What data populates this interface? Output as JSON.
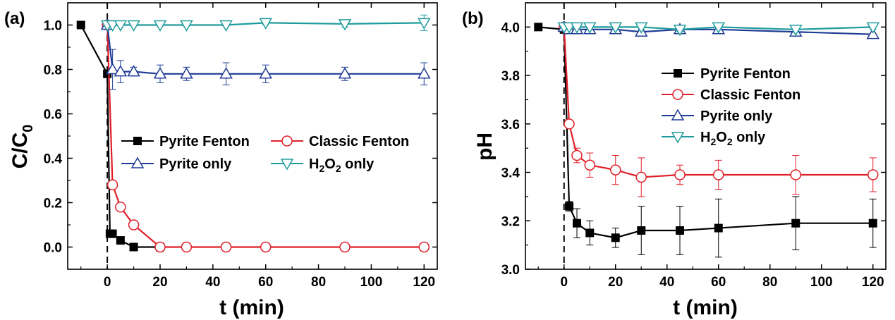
{
  "chart_data": [
    {
      "type": "line",
      "panel_label": "(a)",
      "xlabel": "t (min)",
      "ylabel": "C/C",
      "ylabel_sub": "0",
      "xlim": [
        -15,
        125
      ],
      "ylim": [
        -0.1,
        1.1
      ],
      "xticks": [
        0,
        20,
        40,
        60,
        80,
        100,
        120
      ],
      "yticks": [
        0.0,
        0.2,
        0.4,
        0.6,
        0.8,
        1.0
      ],
      "ytick_decimals": 1,
      "vline_x": 0,
      "legend_position": "center-right",
      "series": [
        {
          "name": "Pyrite Fenton",
          "color": "#000000",
          "marker": "square-filled",
          "x": [
            -10,
            0,
            1,
            2,
            5,
            10,
            20
          ],
          "y": [
            1.0,
            0.78,
            0.06,
            0.06,
            0.03,
            0.0,
            0.0
          ],
          "err": [
            0,
            0,
            0,
            0,
            0,
            0,
            0
          ]
        },
        {
          "name": "Classic Fenton",
          "color": "#e0202a",
          "marker": "circle-open",
          "x": [
            0,
            2,
            5,
            10,
            20,
            30,
            45,
            60,
            90,
            120
          ],
          "y": [
            1.0,
            0.28,
            0.18,
            0.1,
            0.0,
            0.0,
            0.0,
            0.0,
            0.0,
            0.0
          ],
          "err": [
            0,
            0.01,
            0.01,
            0.01,
            0,
            0,
            0,
            0,
            0,
            0
          ]
        },
        {
          "name": "Pyrite only",
          "color": "#1f3c96",
          "marker": "triangle-up-open",
          "x": [
            0,
            2,
            5,
            10,
            20,
            30,
            45,
            60,
            90,
            120
          ],
          "y": [
            1.0,
            0.8,
            0.79,
            0.79,
            0.78,
            0.78,
            0.78,
            0.78,
            0.78,
            0.78
          ],
          "err": [
            0,
            0.09,
            0.05,
            0.02,
            0.04,
            0.03,
            0.05,
            0.04,
            0.03,
            0.05
          ]
        },
        {
          "name": "H2O2 only",
          "name_base": "H",
          "name_sub1": "2",
          "name_mid": "O",
          "name_sub2": "2",
          "name_tail": " only",
          "color": "#1f9b9b",
          "marker": "triangle-down-open",
          "x": [
            0,
            2,
            5,
            10,
            20,
            30,
            45,
            60,
            90,
            120
          ],
          "y": [
            1.0,
            1.0,
            1.0,
            1.0,
            1.0,
            1.0,
            1.0,
            1.01,
            1.005,
            1.01
          ],
          "err": [
            0,
            0,
            0,
            0,
            0.005,
            0.005,
            0.005,
            0.01,
            0.015,
            0.035
          ]
        }
      ]
    },
    {
      "type": "line",
      "panel_label": "(b)",
      "xlabel": "t (min)",
      "ylabel": "pH",
      "xlim": [
        -15,
        125
      ],
      "ylim": [
        3.0,
        4.1
      ],
      "xticks": [
        0,
        20,
        40,
        60,
        80,
        100,
        120
      ],
      "yticks": [
        3.0,
        3.2,
        3.4,
        3.6,
        3.8,
        4.0
      ],
      "ytick_decimals": 1,
      "vline_x": 0,
      "legend_position": "upper-center",
      "series": [
        {
          "name": "Pyrite Fenton",
          "color": "#000000",
          "marker": "square-filled",
          "x": [
            -10,
            0,
            2,
            5,
            10,
            20,
            30,
            45,
            60,
            90,
            120
          ],
          "y": [
            4.0,
            3.99,
            3.26,
            3.19,
            3.15,
            3.13,
            3.16,
            3.16,
            3.17,
            3.19,
            3.19
          ],
          "err": [
            0,
            0,
            0.02,
            0.06,
            0.05,
            0.04,
            0.1,
            0.1,
            0.12,
            0.11,
            0.1
          ]
        },
        {
          "name": "Classic Fenton",
          "color": "#e0202a",
          "marker": "circle-open",
          "x": [
            0,
            2,
            5,
            10,
            20,
            30,
            45,
            60,
            90,
            120
          ],
          "y": [
            4.0,
            3.6,
            3.47,
            3.43,
            3.41,
            3.38,
            3.39,
            3.39,
            3.39,
            3.39
          ],
          "err": [
            0,
            0,
            0.03,
            0.05,
            0.06,
            0.08,
            0.04,
            0.06,
            0.08,
            0.07
          ]
        },
        {
          "name": "Pyrite only",
          "color": "#1f3c96",
          "marker": "triangle-up-open",
          "x": [
            0,
            2,
            5,
            10,
            20,
            30,
            45,
            60,
            90,
            120
          ],
          "y": [
            4.0,
            3.99,
            3.99,
            3.99,
            3.99,
            3.98,
            3.99,
            3.99,
            3.98,
            3.97
          ],
          "err": [
            0,
            0,
            0,
            0,
            0,
            0,
            0,
            0,
            0,
            0
          ]
        },
        {
          "name": "H2O2 only",
          "name_base": "H",
          "name_sub1": "2",
          "name_mid": "O",
          "name_sub2": "2",
          "name_tail": " only",
          "color": "#1f9b9b",
          "marker": "triangle-down-open",
          "x": [
            0,
            2,
            5,
            10,
            20,
            30,
            45,
            60,
            90,
            120
          ],
          "y": [
            4.0,
            4.0,
            4.0,
            4.0,
            4.0,
            4.0,
            3.99,
            4.0,
            3.99,
            4.0
          ],
          "err": [
            0,
            0,
            0,
            0,
            0.01,
            0.01,
            0.01,
            0.01,
            0.01,
            0.01
          ]
        }
      ]
    }
  ]
}
